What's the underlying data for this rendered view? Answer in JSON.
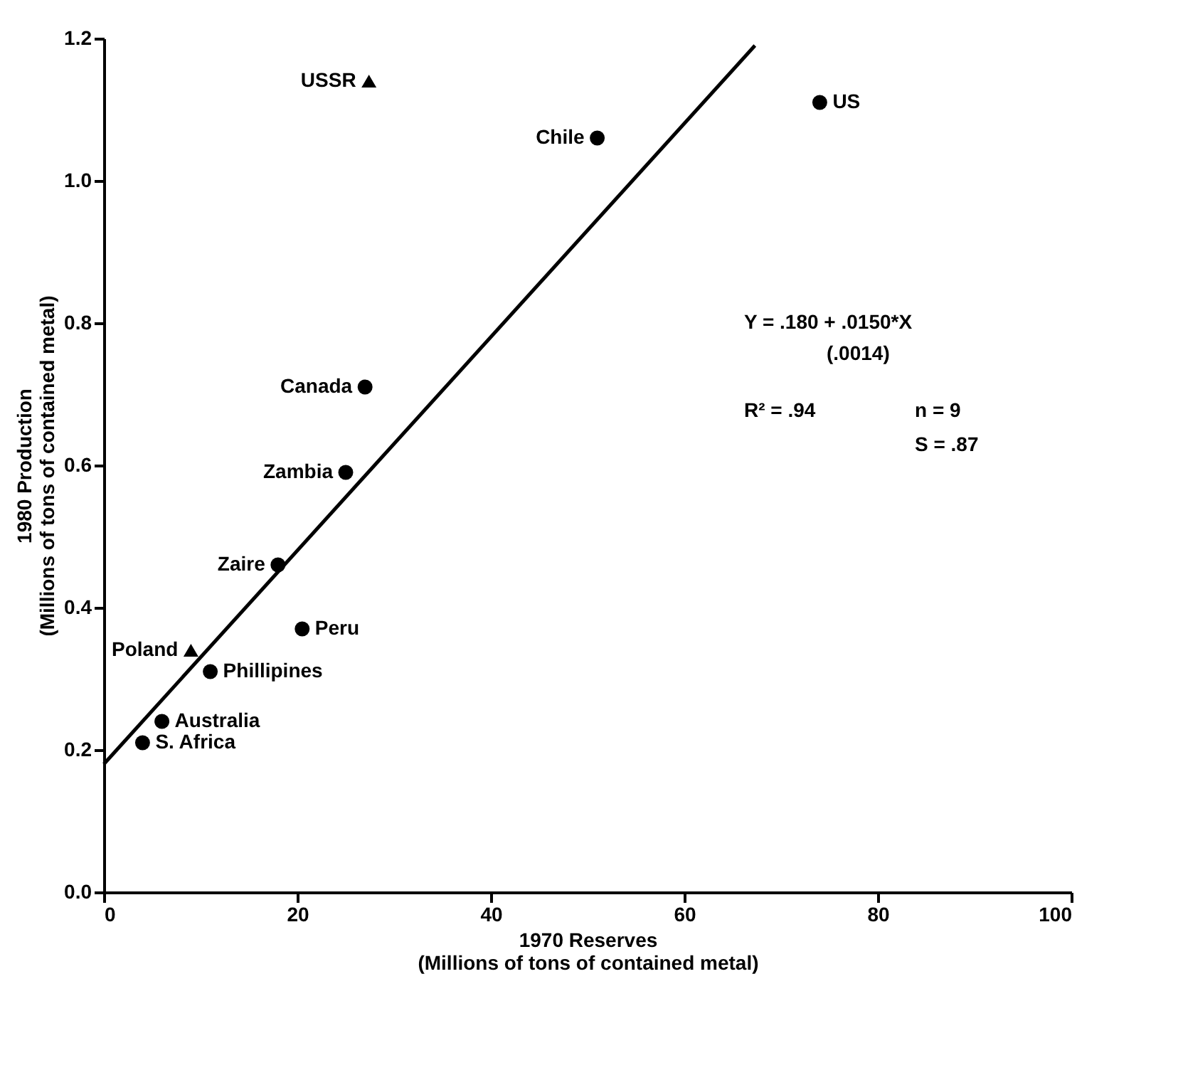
{
  "chart_data": {
    "type": "scatter",
    "xlabel": "1970 Reserves\n(Millions of tons of contained metal)",
    "ylabel": "1980 Production\n(Millions of tons of contained metal)",
    "xlim": [
      0,
      100
    ],
    "xticks": [
      0,
      20,
      40,
      60,
      80,
      100
    ],
    "ylim": [
      0,
      1.2
    ],
    "yticks": [
      {
        "value": 0,
        "label": "0.0"
      },
      0.2,
      0.4,
      0.6,
      0.8,
      {
        "value": 1,
        "label": "1.0"
      },
      1.2
    ],
    "series": [
      {
        "marker": "circle",
        "color": "#000000",
        "x": [
          74,
          51,
          27,
          25,
          18,
          20.5,
          11,
          6,
          4
        ],
        "values": [
          1.11,
          1.06,
          0.71,
          0.59,
          0.46,
          0.37,
          0.31,
          0.24,
          0.21
        ]
      },
      {
        "marker": "triangle",
        "color": "#000000",
        "x": [
          27.4,
          9
        ],
        "values": [
          1.14,
          0.34
        ]
      },
      {
        "type": "line",
        "marker": "none",
        "color": "#000000",
        "x": [
          0,
          67.3
        ],
        "values": [
          0.18,
          1.19
        ]
      }
    ],
    "annotations": [
      {
        "text": "US",
        "x": 74,
        "y": 1.11
      },
      {
        "text": "Chile",
        "x": 51,
        "y": 1.06
      },
      {
        "text": "USSR",
        "x": 27.4,
        "y": 1.14
      },
      {
        "text": "Canada",
        "x": 27,
        "y": 0.71
      },
      {
        "text": "Zambia",
        "x": 25,
        "y": 0.59
      },
      {
        "text": "Zaire",
        "x": 18,
        "y": 0.46
      },
      {
        "text": "Peru",
        "x": 20.5,
        "y": 0.37
      },
      {
        "text": "Poland",
        "x": 9,
        "y": 0.34
      },
      {
        "text": "Phillipines",
        "x": 11,
        "y": 0.31
      },
      {
        "text": "Australia",
        "x": 6,
        "y": 0.24
      },
      {
        "text": "S. Africa",
        "x": 4,
        "y": 0.21
      },
      "Y = .180 + .0150*X",
      "(.0014)",
      "R² = .94",
      "n = 9",
      "S = .87"
    ]
  }
}
